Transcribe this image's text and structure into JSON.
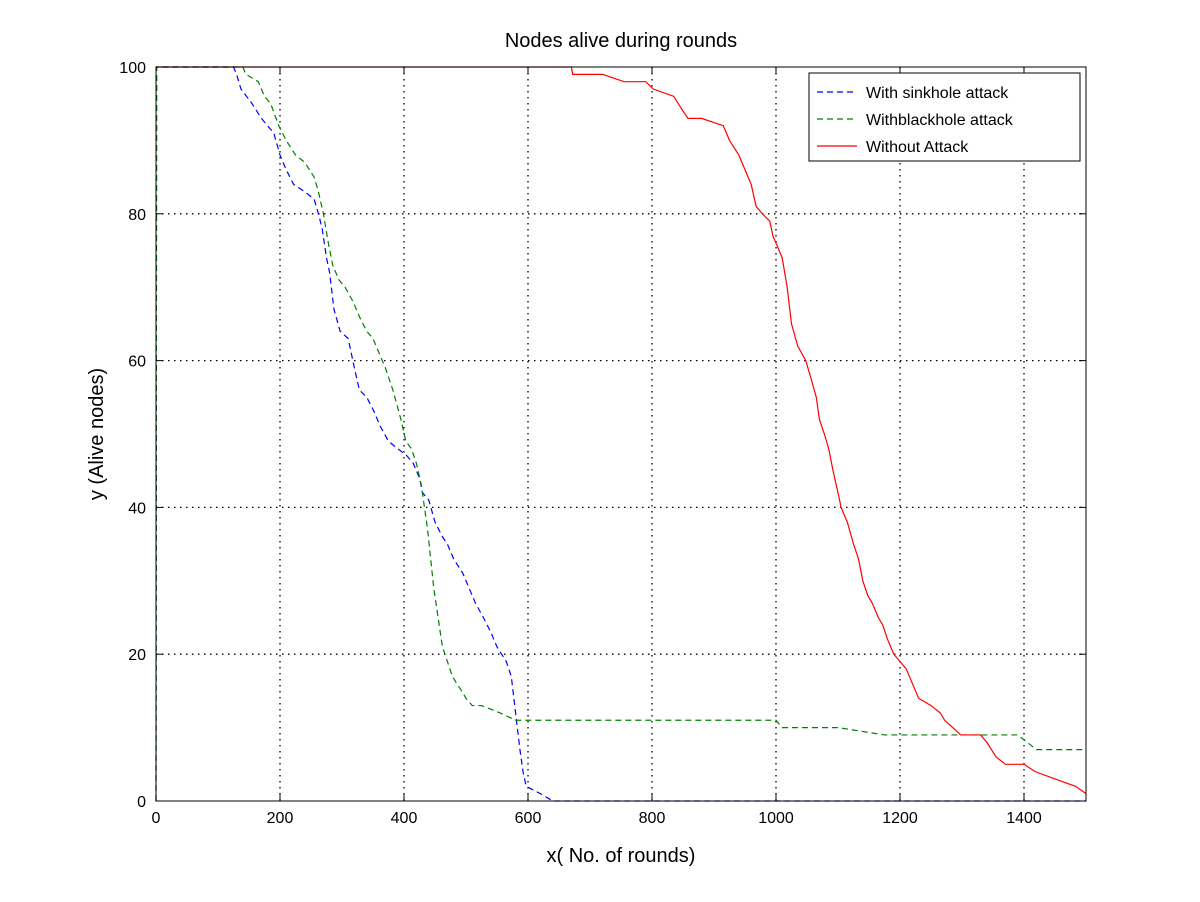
{
  "chart_data": {
    "type": "line",
    "title": "Nodes alive during rounds",
    "xlabel": "x( No. of rounds)",
    "ylabel": "y (Alive nodes)",
    "xlim": [
      0,
      1500
    ],
    "ylim": [
      0,
      100
    ],
    "xticks": [
      0,
      200,
      400,
      600,
      800,
      1000,
      1200,
      1400
    ],
    "yticks": [
      0,
      20,
      40,
      60,
      80,
      100
    ],
    "grid": true,
    "legend_position": "top-right",
    "series": [
      {
        "name": "With sinkhole attack",
        "color": "#0000ff",
        "dash": "dashed",
        "points": [
          [
            0,
            0
          ],
          [
            1,
            100
          ],
          [
            125,
            100
          ],
          [
            130,
            99
          ],
          [
            137,
            97
          ],
          [
            155,
            95
          ],
          [
            170,
            93
          ],
          [
            190,
            91
          ],
          [
            200,
            88
          ],
          [
            210,
            86
          ],
          [
            222,
            84
          ],
          [
            240,
            83
          ],
          [
            255,
            82
          ],
          [
            262,
            80
          ],
          [
            268,
            78
          ],
          [
            275,
            74
          ],
          [
            280,
            72
          ],
          [
            287,
            67
          ],
          [
            297,
            64
          ],
          [
            310,
            63
          ],
          [
            320,
            59
          ],
          [
            328,
            56
          ],
          [
            340,
            55
          ],
          [
            352,
            53
          ],
          [
            362,
            51
          ],
          [
            375,
            49
          ],
          [
            390,
            48
          ],
          [
            405,
            47
          ],
          [
            415,
            46
          ],
          [
            425,
            44
          ],
          [
            430,
            42
          ],
          [
            440,
            41
          ],
          [
            450,
            38
          ],
          [
            462,
            36
          ],
          [
            470,
            35
          ],
          [
            480,
            33
          ],
          [
            495,
            31
          ],
          [
            505,
            29
          ],
          [
            515,
            27
          ],
          [
            528,
            25
          ],
          [
            540,
            23
          ],
          [
            550,
            21
          ],
          [
            565,
            19
          ],
          [
            573,
            17
          ],
          [
            580,
            12
          ],
          [
            587,
            7
          ],
          [
            592,
            4
          ],
          [
            597,
            2
          ],
          [
            620,
            1
          ],
          [
            640,
            0
          ],
          [
            1500,
            0
          ]
        ]
      },
      {
        "name": "Withblackhole attack",
        "color": "#008000",
        "dash": "dashed",
        "points": [
          [
            0,
            0
          ],
          [
            1,
            100
          ],
          [
            140,
            100
          ],
          [
            145,
            99
          ],
          [
            165,
            98
          ],
          [
            175,
            96
          ],
          [
            185,
            95
          ],
          [
            198,
            92
          ],
          [
            210,
            90
          ],
          [
            225,
            88
          ],
          [
            240,
            87
          ],
          [
            255,
            85
          ],
          [
            262,
            83
          ],
          [
            270,
            80
          ],
          [
            278,
            76
          ],
          [
            285,
            73
          ],
          [
            295,
            71
          ],
          [
            305,
            70
          ],
          [
            318,
            68
          ],
          [
            328,
            66
          ],
          [
            340,
            64
          ],
          [
            350,
            63
          ],
          [
            360,
            61
          ],
          [
            370,
            59
          ],
          [
            382,
            56
          ],
          [
            395,
            52
          ],
          [
            403,
            49
          ],
          [
            412,
            48
          ],
          [
            420,
            46
          ],
          [
            428,
            43
          ],
          [
            433,
            40
          ],
          [
            438,
            37
          ],
          [
            443,
            33
          ],
          [
            448,
            29
          ],
          [
            455,
            25
          ],
          [
            462,
            21
          ],
          [
            470,
            19
          ],
          [
            478,
            17
          ],
          [
            485,
            16
          ],
          [
            493,
            15
          ],
          [
            500,
            14
          ],
          [
            510,
            13
          ],
          [
            525,
            13
          ],
          [
            555,
            12
          ],
          [
            580,
            11
          ],
          [
            650,
            11
          ],
          [
            800,
            11
          ],
          [
            1000,
            11
          ],
          [
            1010,
            10
          ],
          [
            1100,
            10
          ],
          [
            1175,
            9
          ],
          [
            1300,
            9
          ],
          [
            1390,
            9
          ],
          [
            1405,
            8
          ],
          [
            1420,
            7
          ],
          [
            1500,
            7
          ]
        ]
      },
      {
        "name": "Without Attack",
        "color": "#ff0000",
        "dash": "solid",
        "points": [
          [
            0,
            100
          ],
          [
            670,
            100
          ],
          [
            672,
            99
          ],
          [
            720,
            99
          ],
          [
            755,
            98
          ],
          [
            790,
            98
          ],
          [
            802,
            97
          ],
          [
            835,
            96
          ],
          [
            850,
            94
          ],
          [
            858,
            93
          ],
          [
            880,
            93
          ],
          [
            915,
            92
          ],
          [
            925,
            90
          ],
          [
            940,
            88
          ],
          [
            950,
            86
          ],
          [
            960,
            84
          ],
          [
            968,
            81
          ],
          [
            978,
            80
          ],
          [
            990,
            79
          ],
          [
            995,
            77
          ],
          [
            1000,
            76
          ],
          [
            1010,
            74
          ],
          [
            1018,
            70
          ],
          [
            1025,
            65
          ],
          [
            1035,
            62
          ],
          [
            1048,
            60
          ],
          [
            1055,
            58
          ],
          [
            1065,
            55
          ],
          [
            1070,
            52
          ],
          [
            1078,
            50
          ],
          [
            1085,
            48
          ],
          [
            1092,
            45
          ],
          [
            1100,
            42
          ],
          [
            1105,
            40
          ],
          [
            1115,
            38
          ],
          [
            1125,
            35
          ],
          [
            1133,
            33
          ],
          [
            1140,
            30
          ],
          [
            1148,
            28
          ],
          [
            1155,
            27
          ],
          [
            1165,
            25
          ],
          [
            1172,
            24
          ],
          [
            1180,
            22
          ],
          [
            1190,
            20
          ],
          [
            1200,
            19
          ],
          [
            1210,
            18
          ],
          [
            1220,
            16
          ],
          [
            1230,
            14
          ],
          [
            1250,
            13
          ],
          [
            1265,
            12
          ],
          [
            1272,
            11
          ],
          [
            1285,
            10
          ],
          [
            1298,
            9
          ],
          [
            1330,
            9
          ],
          [
            1340,
            8
          ],
          [
            1355,
            6
          ],
          [
            1370,
            5
          ],
          [
            1400,
            5
          ],
          [
            1418,
            4
          ],
          [
            1450,
            3
          ],
          [
            1483,
            2
          ],
          [
            1500,
            1
          ]
        ]
      }
    ]
  }
}
